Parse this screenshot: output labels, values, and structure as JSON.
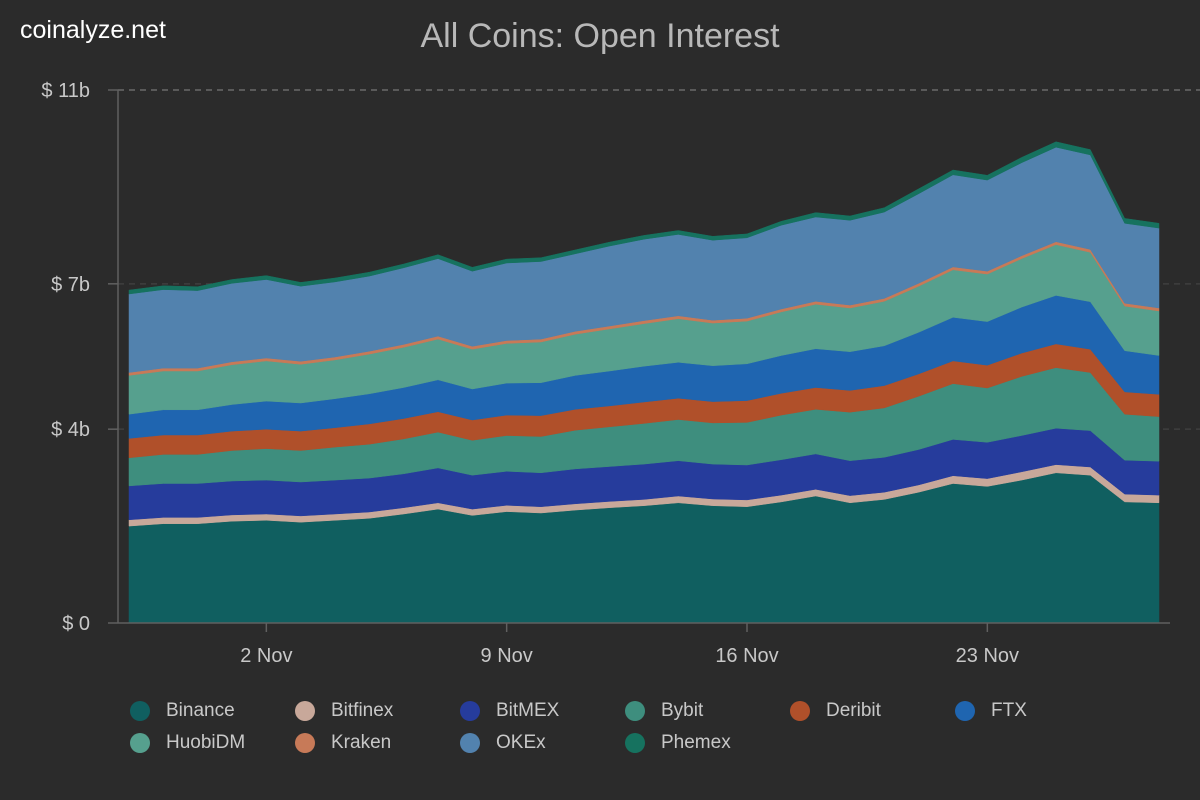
{
  "brand": "coinalyze.net",
  "chart_data": {
    "type": "area",
    "stacked": true,
    "title": "All Coins: Open Interest",
    "xlabel": "",
    "ylabel": "",
    "ylim": [
      0,
      11
    ],
    "y_unit": "billion USD",
    "y_ticks": [
      {
        "value": 0,
        "label": "$ 0"
      },
      {
        "value": 4,
        "label": "$ 4b"
      },
      {
        "value": 7,
        "label": "$ 7b"
      },
      {
        "value": 11,
        "label": "$ 11b"
      }
    ],
    "x_ticks": [
      {
        "day": 4,
        "label": "2 Nov"
      },
      {
        "day": 11,
        "label": "9 Nov"
      },
      {
        "day": 18,
        "label": "16 Nov"
      },
      {
        "day": 25,
        "label": "23 Nov"
      }
    ],
    "x_range": [
      0,
      31
    ],
    "x": [
      0,
      1,
      2,
      3,
      4,
      5,
      6,
      7,
      8,
      9,
      10,
      11,
      12,
      13,
      14,
      15,
      16,
      17,
      18,
      19,
      20,
      21,
      22,
      23,
      24,
      25,
      26,
      27,
      28,
      29,
      30
    ],
    "grid": "dashed horizontal at top tick",
    "legend_position": "bottom",
    "series": [
      {
        "name": "Binance",
        "color": "#105f60",
        "values": [
          2.0,
          2.05,
          2.05,
          2.1,
          2.12,
          2.08,
          2.12,
          2.16,
          2.25,
          2.35,
          2.22,
          2.3,
          2.27,
          2.33,
          2.38,
          2.42,
          2.48,
          2.42,
          2.4,
          2.5,
          2.62,
          2.48,
          2.55,
          2.7,
          2.88,
          2.82,
          2.95,
          3.1,
          3.05,
          2.5,
          2.48
        ]
      },
      {
        "name": "Bitfinex",
        "color": "#c8a89a",
        "values": [
          0.13,
          0.13,
          0.13,
          0.13,
          0.13,
          0.13,
          0.13,
          0.13,
          0.13,
          0.13,
          0.13,
          0.13,
          0.13,
          0.13,
          0.13,
          0.13,
          0.14,
          0.14,
          0.14,
          0.14,
          0.14,
          0.15,
          0.15,
          0.15,
          0.16,
          0.16,
          0.17,
          0.17,
          0.17,
          0.16,
          0.16
        ]
      },
      {
        "name": "BitMEX",
        "color": "#263c9c",
        "values": [
          0.7,
          0.7,
          0.7,
          0.7,
          0.7,
          0.7,
          0.7,
          0.7,
          0.7,
          0.72,
          0.7,
          0.7,
          0.7,
          0.72,
          0.72,
          0.73,
          0.73,
          0.72,
          0.72,
          0.73,
          0.73,
          0.72,
          0.72,
          0.73,
          0.75,
          0.75,
          0.75,
          0.75,
          0.75,
          0.7,
          0.7
        ]
      },
      {
        "name": "Bybit",
        "color": "#3e8e7e",
        "values": [
          0.58,
          0.6,
          0.6,
          0.63,
          0.65,
          0.65,
          0.68,
          0.7,
          0.72,
          0.74,
          0.72,
          0.74,
          0.75,
          0.8,
          0.82,
          0.84,
          0.85,
          0.85,
          0.88,
          0.92,
          0.92,
          1.0,
          1.02,
          1.1,
          1.15,
          1.12,
          1.22,
          1.25,
          1.2,
          0.95,
          0.92
        ]
      },
      {
        "name": "Deribit",
        "color": "#b0502a",
        "values": [
          0.4,
          0.4,
          0.4,
          0.4,
          0.4,
          0.4,
          0.4,
          0.42,
          0.42,
          0.42,
          0.42,
          0.42,
          0.43,
          0.43,
          0.43,
          0.44,
          0.44,
          0.44,
          0.45,
          0.45,
          0.45,
          0.45,
          0.46,
          0.46,
          0.47,
          0.47,
          0.48,
          0.49,
          0.48,
          0.46,
          0.46
        ]
      },
      {
        "name": "FTX",
        "color": "#1f65b0",
        "values": [
          0.5,
          0.52,
          0.52,
          0.55,
          0.58,
          0.58,
          0.6,
          0.62,
          0.64,
          0.66,
          0.64,
          0.66,
          0.68,
          0.7,
          0.72,
          0.74,
          0.74,
          0.74,
          0.76,
          0.78,
          0.8,
          0.8,
          0.82,
          0.86,
          0.9,
          0.9,
          0.95,
          1.0,
          0.98,
          0.85,
          0.8
        ]
      },
      {
        "name": "HuobiDM",
        "color": "#56a08e",
        "values": [
          0.8,
          0.8,
          0.8,
          0.82,
          0.83,
          0.8,
          0.8,
          0.82,
          0.83,
          0.84,
          0.82,
          0.82,
          0.84,
          0.85,
          0.87,
          0.88,
          0.9,
          0.88,
          0.88,
          0.9,
          0.92,
          0.9,
          0.92,
          0.95,
          0.98,
          0.98,
          1.0,
          1.05,
          1.02,
          0.92,
          0.92
        ]
      },
      {
        "name": "Kraken",
        "color": "#c77a58",
        "values": [
          0.06,
          0.06,
          0.06,
          0.06,
          0.06,
          0.06,
          0.06,
          0.06,
          0.06,
          0.06,
          0.06,
          0.06,
          0.06,
          0.06,
          0.06,
          0.06,
          0.06,
          0.06,
          0.06,
          0.06,
          0.06,
          0.06,
          0.06,
          0.06,
          0.06,
          0.06,
          0.06,
          0.06,
          0.06,
          0.06,
          0.06
        ]
      },
      {
        "name": "OKEx",
        "color": "#5282ae",
        "values": [
          1.62,
          1.62,
          1.6,
          1.62,
          1.62,
          1.55,
          1.55,
          1.55,
          1.58,
          1.6,
          1.55,
          1.6,
          1.6,
          1.6,
          1.65,
          1.68,
          1.68,
          1.65,
          1.66,
          1.73,
          1.74,
          1.75,
          1.78,
          1.85,
          1.9,
          1.88,
          1.92,
          1.95,
          1.95,
          1.65,
          1.65
        ]
      },
      {
        "name": "Phemex",
        "color": "#16725f",
        "values": [
          0.08,
          0.08,
          0.08,
          0.08,
          0.08,
          0.08,
          0.08,
          0.08,
          0.08,
          0.08,
          0.08,
          0.08,
          0.08,
          0.08,
          0.08,
          0.08,
          0.08,
          0.08,
          0.08,
          0.08,
          0.09,
          0.09,
          0.09,
          0.1,
          0.1,
          0.1,
          0.11,
          0.11,
          0.11,
          0.1,
          0.1
        ]
      }
    ]
  }
}
